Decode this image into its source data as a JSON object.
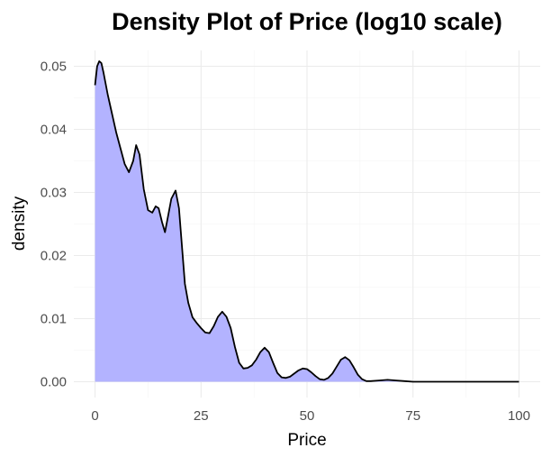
{
  "chart_data": {
    "type": "area",
    "title": "Density Plot of Price (log10 scale)",
    "xlabel": "Price",
    "ylabel": "density",
    "xlim": [
      -5,
      105
    ],
    "ylim": [
      -0.0025,
      0.0525
    ],
    "x_ticks": [
      0,
      25,
      50,
      75,
      100
    ],
    "x_tick_labels": [
      "0",
      "25",
      "50",
      "75",
      "100"
    ],
    "y_ticks": [
      0,
      0.01,
      0.02,
      0.03,
      0.04,
      0.05
    ],
    "y_tick_labels": [
      "0.00",
      "0.01",
      "0.02",
      "0.03",
      "0.04",
      "0.05"
    ],
    "grid": true,
    "legend": "none",
    "fill_color": "#b3b3ff",
    "line_color": "#000000",
    "series": [
      {
        "x": [
          0,
          0.5,
          1,
          1.5,
          2,
          3,
          4,
          5,
          6,
          7,
          8,
          9,
          9.7,
          10.5,
          11.5,
          12.5,
          13.5,
          14.3,
          15,
          15.8,
          16.5,
          17.3,
          18,
          19,
          19.8,
          20.5,
          21.2,
          22,
          23,
          24,
          25,
          26,
          27,
          28,
          29,
          30,
          31,
          32,
          33,
          34,
          35,
          36,
          37,
          38,
          39,
          40,
          41,
          42,
          43,
          44,
          45,
          46,
          47,
          48,
          49,
          50,
          51,
          52,
          53,
          54,
          55,
          56,
          57,
          58,
          59,
          60,
          61,
          62,
          63,
          64,
          65,
          67,
          69,
          71,
          73,
          75,
          80,
          90,
          100
        ],
        "y": [
          0.047,
          0.05,
          0.0508,
          0.0505,
          0.049,
          0.0455,
          0.0425,
          0.0395,
          0.037,
          0.0345,
          0.0332,
          0.035,
          0.0375,
          0.036,
          0.0305,
          0.0272,
          0.0268,
          0.0278,
          0.0275,
          0.0253,
          0.0237,
          0.0265,
          0.029,
          0.0303,
          0.0275,
          0.0215,
          0.0155,
          0.0125,
          0.0102,
          0.0093,
          0.0085,
          0.0078,
          0.0077,
          0.0088,
          0.0103,
          0.0111,
          0.0103,
          0.0085,
          0.0055,
          0.003,
          0.0021,
          0.0022,
          0.0026,
          0.0035,
          0.0047,
          0.0054,
          0.0047,
          0.003,
          0.0014,
          0.0007,
          0.0006,
          0.0008,
          0.0013,
          0.0018,
          0.0021,
          0.002,
          0.0015,
          0.0009,
          0.0004,
          0.0003,
          0.0006,
          0.0013,
          0.0024,
          0.0035,
          0.0039,
          0.0034,
          0.0023,
          0.0011,
          0.0004,
          0.0001,
          0.0001,
          0.0002,
          0.0003,
          0.0002,
          0.0001,
          0.0,
          0.0,
          0.0,
          0.0
        ]
      }
    ]
  }
}
